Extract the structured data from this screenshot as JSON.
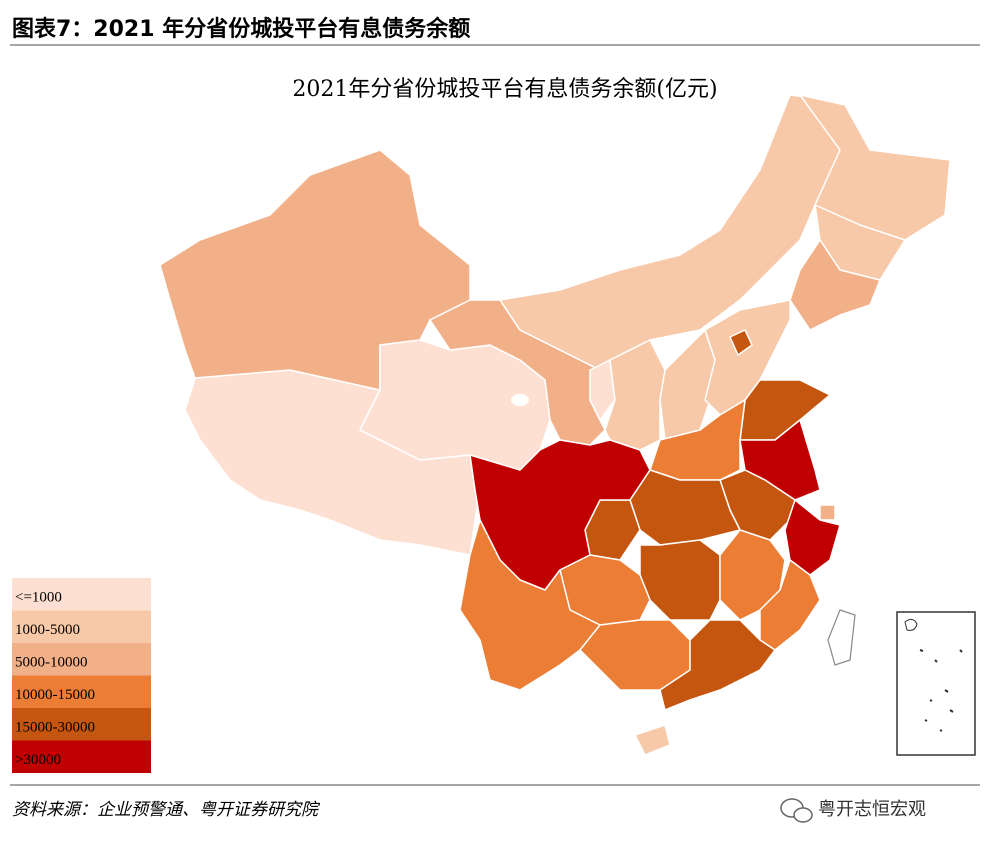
{
  "header": {
    "title": "图表7：2021 年分省份城投平台有息债务余额"
  },
  "map": {
    "title": "2021年分省份城投平台有息债务余额(亿元)",
    "legend": [
      {
        "label": "<=1000",
        "color": "#fde0d2"
      },
      {
        "label": "1000-5000",
        "color": "#f7c9a8"
      },
      {
        "label": "5000-10000",
        "color": "#f2b088"
      },
      {
        "label": "10000-15000",
        "color": "#ec7d34"
      },
      {
        "label": "15000-30000",
        "color": "#c5560f"
      },
      {
        "label": ">30000",
        "color": "#c00000"
      }
    ]
  },
  "source": "资料来源：企业预警通、粤开证券研究院",
  "watermark": "粤开志恒宏观"
}
